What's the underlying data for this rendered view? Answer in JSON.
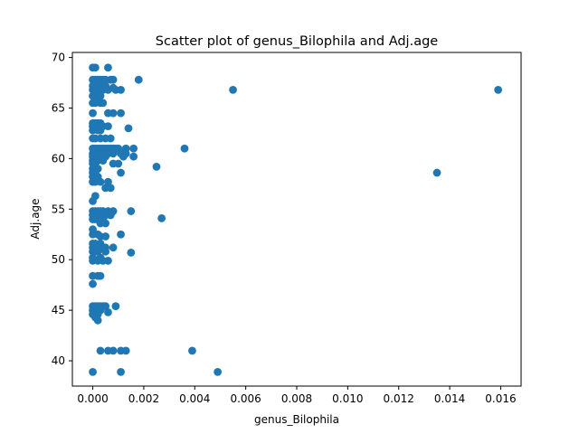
{
  "chart_data": {
    "type": "scatter",
    "title": "Scatter plot of genus_Bilophila and Adj.age",
    "xlabel": "genus_Bilophila",
    "ylabel": "Adj.age",
    "xlim": [
      -0.0008,
      0.0168
    ],
    "ylim": [
      37.5,
      70.5
    ],
    "xticks": [
      0.0,
      0.002,
      0.004,
      0.006,
      0.008,
      0.01,
      0.012,
      0.014,
      0.016
    ],
    "xtick_labels": [
      "0.000",
      "0.002",
      "0.004",
      "0.006",
      "0.008",
      "0.010",
      "0.012",
      "0.014",
      "0.016"
    ],
    "yticks": [
      40,
      45,
      50,
      55,
      60,
      65,
      70
    ],
    "ytick_labels": [
      "40",
      "45",
      "50",
      "55",
      "60",
      "65",
      "70"
    ],
    "grid": false,
    "marker_color": "#1f77b4",
    "series": [
      {
        "points": [
          [
            0.0,
            69.0
          ],
          [
            0.0001,
            69.0
          ],
          [
            0.0006,
            69.0
          ],
          [
            0.0,
            67.8
          ],
          [
            0.0001,
            67.8
          ],
          [
            0.0002,
            67.8
          ],
          [
            0.0003,
            67.8
          ],
          [
            0.0004,
            67.8
          ],
          [
            0.0005,
            67.8
          ],
          [
            0.0007,
            67.8
          ],
          [
            0.0008,
            67.8
          ],
          [
            0.0018,
            67.8
          ],
          [
            0.0,
            67.2
          ],
          [
            0.0002,
            67.2
          ],
          [
            0.0003,
            67.2
          ],
          [
            0.0005,
            67.2
          ],
          [
            0.0,
            66.8
          ],
          [
            0.0001,
            66.8
          ],
          [
            0.0002,
            66.8
          ],
          [
            0.0004,
            66.8
          ],
          [
            0.0006,
            66.8
          ],
          [
            0.0009,
            66.8
          ],
          [
            0.0011,
            66.8
          ],
          [
            0.0055,
            66.8
          ],
          [
            0.0159,
            66.8
          ],
          [
            0.0008,
            67.0
          ],
          [
            0.0,
            66.2
          ],
          [
            0.0002,
            66.2
          ],
          [
            0.0003,
            66.2
          ],
          [
            0.0,
            65.5
          ],
          [
            0.0001,
            65.5
          ],
          [
            0.0003,
            65.5
          ],
          [
            0.0004,
            65.5
          ],
          [
            0.0,
            64.5
          ],
          [
            0.0006,
            64.5
          ],
          [
            0.0008,
            64.5
          ],
          [
            0.0011,
            64.5
          ],
          [
            0.0,
            63.5
          ],
          [
            0.0001,
            63.5
          ],
          [
            0.0002,
            63.5
          ],
          [
            0.0003,
            63.5
          ],
          [
            0.0,
            63.2
          ],
          [
            0.0001,
            63.2
          ],
          [
            0.0004,
            63.2
          ],
          [
            0.0006,
            63.2
          ],
          [
            0.0,
            62.8
          ],
          [
            0.0002,
            62.8
          ],
          [
            0.0003,
            62.8
          ],
          [
            0.0014,
            63.0
          ],
          [
            0.0,
            62.0
          ],
          [
            0.0001,
            62.0
          ],
          [
            0.0003,
            62.0
          ],
          [
            0.0005,
            62.0
          ],
          [
            0.0007,
            62.0
          ],
          [
            0.0,
            61.0
          ],
          [
            0.0001,
            61.0
          ],
          [
            0.0002,
            61.0
          ],
          [
            0.0003,
            61.0
          ],
          [
            0.0004,
            61.0
          ],
          [
            0.0005,
            61.0
          ],
          [
            0.0006,
            61.0
          ],
          [
            0.0007,
            61.0
          ],
          [
            0.0008,
            61.0
          ],
          [
            0.0009,
            61.0
          ],
          [
            0.001,
            61.0
          ],
          [
            0.0013,
            61.0
          ],
          [
            0.0016,
            61.0
          ],
          [
            0.0036,
            61.0
          ],
          [
            0.0,
            60.5
          ],
          [
            0.0002,
            60.5
          ],
          [
            0.0004,
            60.5
          ],
          [
            0.0006,
            60.5
          ],
          [
            0.0008,
            60.5
          ],
          [
            0.0011,
            60.5
          ],
          [
            0.0013,
            60.5
          ],
          [
            0.0,
            60.2
          ],
          [
            0.0001,
            60.2
          ],
          [
            0.0003,
            60.2
          ],
          [
            0.0005,
            60.2
          ],
          [
            0.0012,
            60.2
          ],
          [
            0.0016,
            60.2
          ],
          [
            0.0,
            59.8
          ],
          [
            0.0002,
            59.8
          ],
          [
            0.0004,
            59.8
          ],
          [
            0.0,
            59.5
          ],
          [
            0.0001,
            59.5
          ],
          [
            0.0008,
            59.5
          ],
          [
            0.001,
            59.5
          ],
          [
            0.0025,
            59.2
          ],
          [
            0.0,
            59.0
          ],
          [
            0.0002,
            59.0
          ],
          [
            0.0,
            58.6
          ],
          [
            0.0001,
            58.6
          ],
          [
            0.0011,
            58.6
          ],
          [
            0.0135,
            58.6
          ],
          [
            0.0,
            58.2
          ],
          [
            0.0002,
            58.2
          ],
          [
            0.0,
            57.7
          ],
          [
            0.0001,
            57.7
          ],
          [
            0.0003,
            57.7
          ],
          [
            0.0006,
            57.7
          ],
          [
            0.0005,
            57.1
          ],
          [
            0.0007,
            57.1
          ],
          [
            0.0001,
            56.3
          ],
          [
            0.0,
            55.8
          ],
          [
            0.0,
            54.8
          ],
          [
            0.0001,
            54.8
          ],
          [
            0.0002,
            54.8
          ],
          [
            0.0003,
            54.8
          ],
          [
            0.0004,
            54.8
          ],
          [
            0.0006,
            54.8
          ],
          [
            0.0008,
            54.8
          ],
          [
            0.0015,
            54.8
          ],
          [
            0.0,
            54.4
          ],
          [
            0.0002,
            54.4
          ],
          [
            0.0004,
            54.4
          ],
          [
            0.0005,
            54.4
          ],
          [
            0.0007,
            54.4
          ],
          [
            0.0,
            54.0
          ],
          [
            0.0001,
            54.0
          ],
          [
            0.0003,
            54.0
          ],
          [
            0.0004,
            54.0
          ],
          [
            0.0027,
            54.1
          ],
          [
            0.0003,
            53.6
          ],
          [
            0.0005,
            53.6
          ],
          [
            0.0,
            53.0
          ],
          [
            0.0,
            52.5
          ],
          [
            0.0002,
            52.5
          ],
          [
            0.0003,
            52.3
          ],
          [
            0.0005,
            52.3
          ],
          [
            0.0011,
            52.5
          ],
          [
            0.0,
            51.6
          ],
          [
            0.0001,
            51.6
          ],
          [
            0.0003,
            51.6
          ],
          [
            0.0,
            51.2
          ],
          [
            0.0001,
            51.2
          ],
          [
            0.0002,
            51.2
          ],
          [
            0.0003,
            51.2
          ],
          [
            0.0004,
            51.2
          ],
          [
            0.0005,
            51.2
          ],
          [
            0.0008,
            51.2
          ],
          [
            0.0,
            50.8
          ],
          [
            0.0001,
            50.8
          ],
          [
            0.0002,
            50.8
          ],
          [
            0.0005,
            50.8
          ],
          [
            0.0015,
            50.7
          ],
          [
            0.0,
            50.2
          ],
          [
            0.0003,
            50.2
          ],
          [
            0.0,
            49.9
          ],
          [
            0.0002,
            49.9
          ],
          [
            0.0004,
            49.9
          ],
          [
            0.0006,
            49.9
          ],
          [
            0.0,
            48.4
          ],
          [
            0.0002,
            48.4
          ],
          [
            0.0003,
            48.4
          ],
          [
            0.0,
            47.6
          ],
          [
            0.0,
            45.4
          ],
          [
            0.0001,
            45.4
          ],
          [
            0.0002,
            45.4
          ],
          [
            0.0003,
            45.4
          ],
          [
            0.0004,
            45.4
          ],
          [
            0.0005,
            45.4
          ],
          [
            0.0009,
            45.4
          ],
          [
            0.0,
            45.0
          ],
          [
            0.0001,
            45.0
          ],
          [
            0.0003,
            45.0
          ],
          [
            0.0,
            44.6
          ],
          [
            0.0001,
            44.6
          ],
          [
            0.0002,
            44.6
          ],
          [
            0.0006,
            44.8
          ],
          [
            0.0001,
            44.3
          ],
          [
            0.0002,
            44.0
          ],
          [
            0.0003,
            41.0
          ],
          [
            0.0006,
            41.0
          ],
          [
            0.0008,
            41.0
          ],
          [
            0.0011,
            41.0
          ],
          [
            0.0013,
            41.0
          ],
          [
            0.0039,
            41.0
          ],
          [
            0.0,
            38.9
          ],
          [
            0.0011,
            38.9
          ],
          [
            0.0049,
            38.9
          ]
        ]
      }
    ]
  }
}
